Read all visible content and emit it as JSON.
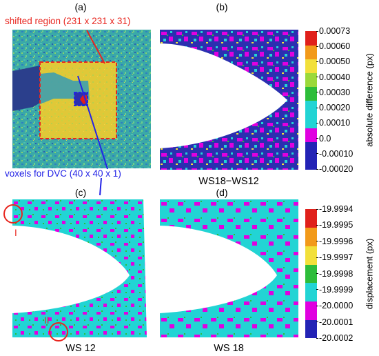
{
  "figure": {
    "panel_letters": {
      "a": "(a)",
      "b": "(b)",
      "c": "(c)",
      "d": "(d)"
    },
    "annotations": {
      "shifted_region": "shifted region (231 x 231 x 31)",
      "voxels_for_dvc": "voxels for DVC (40 x 40 x 1)",
      "marker_one": "I",
      "marker_two": "II"
    },
    "captions": {
      "b": "WS18−WS12",
      "c": "WS 12",
      "d": "WS 18"
    },
    "colors": {
      "annotation_red": "#e8261f",
      "annotation_blue": "#2323e6",
      "dark_blue": "#2b2fb0",
      "magenta": "#e000e0",
      "cyan": "#22d4d4",
      "green": "#2dbd3a",
      "yellow": "#f2e03a",
      "orange": "#f29a1a",
      "red": "#e0201b"
    }
  },
  "chart_data": [
    {
      "type": "heatmap",
      "colorbar_title": "absolute difference (px)",
      "ticks": [
        "0.00073",
        "0.00060",
        "0.00050",
        "0.00040",
        "0.00030",
        "0.00020",
        "0.00010",
        "0.0",
        "-0.00010",
        "-0.00020"
      ],
      "color_levels": [
        "#2323b5",
        "#2323b5",
        "#e000e0",
        "#22d4d4",
        "#22d4d4",
        "#2dbd3a",
        "#9bd93a",
        "#f2e03a",
        "#f29a1a",
        "#e0201b"
      ]
    },
    {
      "type": "heatmap",
      "colorbar_title": "displacement (px)",
      "ticks": [
        "-19.9994",
        "-19.9995",
        "-19.9996",
        "-19.9997",
        "-19.9998",
        "-19.9999",
        "-20.0000",
        "-20.0001",
        "-20.0002"
      ],
      "color_levels": [
        "#2323b5",
        "#e000e0",
        "#22d4d4",
        "#2dbd3a",
        "#f2e03a",
        "#f29a1a",
        "#e0201b"
      ]
    }
  ]
}
